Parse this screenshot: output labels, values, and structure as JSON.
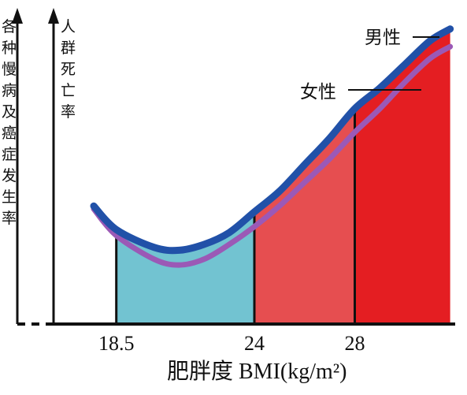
{
  "chart_data": {
    "type": "line",
    "xlabel": "肥胖度 BMI(kg/m²)",
    "ylabel_outer": "各种慢病及癌症发生率",
    "ylabel_inner": "人群死亡率",
    "x_ticks": [
      "18.5",
      "24",
      "28"
    ],
    "bmi_zones": [
      {
        "from": 18.5,
        "to": 24,
        "color": "#72c3d1"
      },
      {
        "from": 24,
        "to": 28,
        "color": "#e64e50"
      },
      {
        "from": 28,
        "to": 31.8,
        "color": "#e41e22"
      }
    ],
    "series": [
      {
        "name": "男性",
        "color": "#2151a8",
        "x": [
          17.6,
          18.5,
          20.0,
          21.0,
          22.0,
          23.0,
          24.0,
          25.0,
          26.0,
          27.0,
          28.0,
          29.0,
          30.0,
          31.0,
          31.8
        ],
        "y": [
          0.4,
          0.32,
          0.26,
          0.25,
          0.27,
          0.31,
          0.38,
          0.45,
          0.54,
          0.63,
          0.73,
          0.8,
          0.88,
          0.96,
          1.0
        ]
      },
      {
        "name": "女性",
        "color": "#9b59b6",
        "x": [
          17.6,
          18.5,
          20.0,
          21.0,
          22.0,
          23.0,
          24.0,
          25.0,
          26.0,
          27.0,
          28.0,
          29.0,
          30.0,
          31.0,
          31.8
        ],
        "y": [
          0.39,
          0.3,
          0.22,
          0.2,
          0.22,
          0.27,
          0.33,
          0.4,
          0.48,
          0.56,
          0.65,
          0.73,
          0.82,
          0.9,
          0.94
        ]
      }
    ],
    "xlim": [
      16.0,
      32.0
    ],
    "ylim": [
      0,
      1.05
    ]
  }
}
